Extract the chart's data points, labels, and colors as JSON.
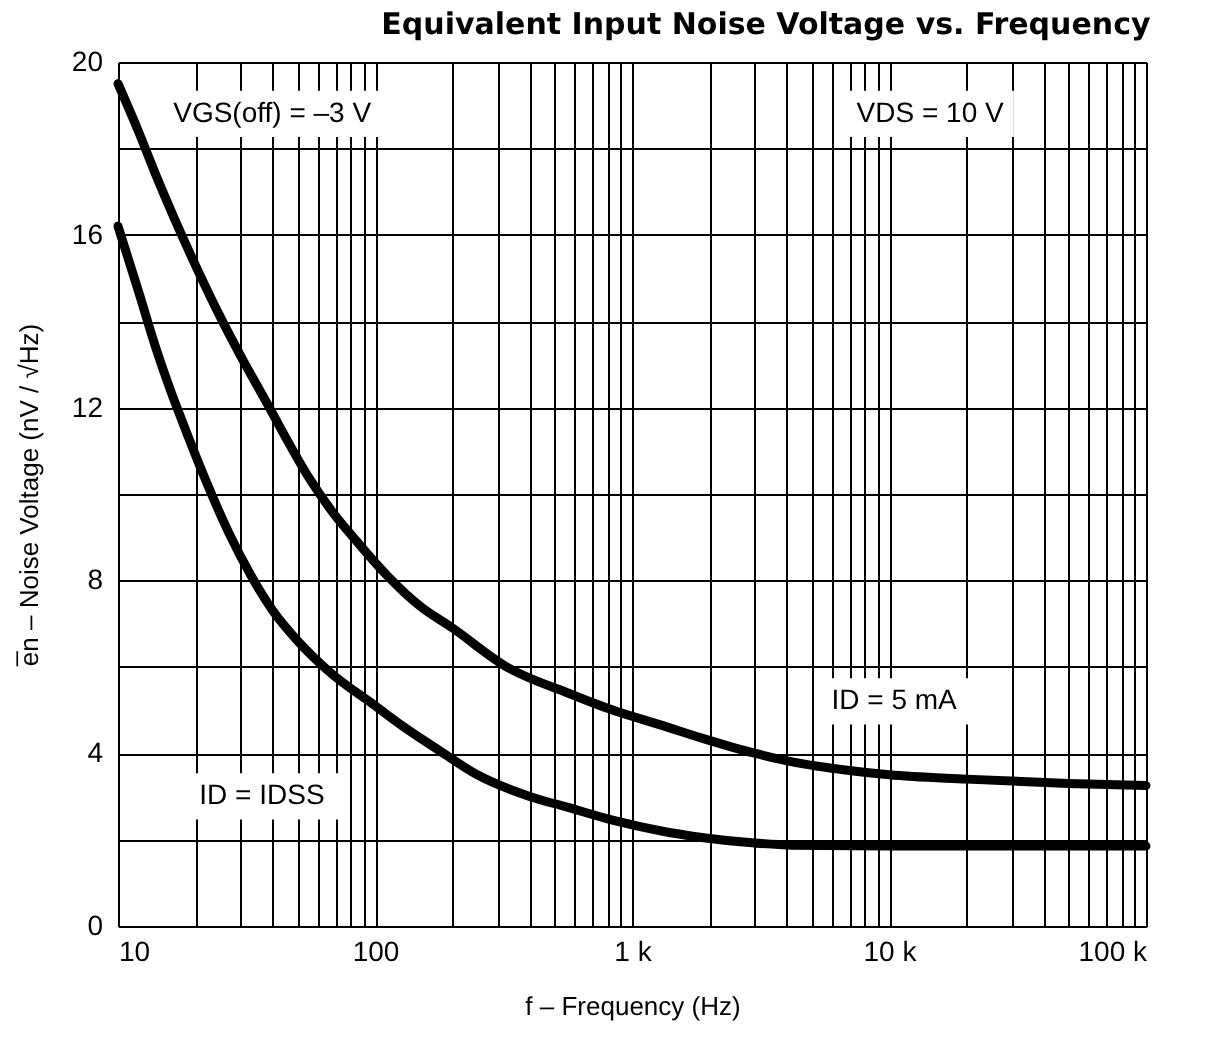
{
  "chart_data": {
    "type": "line",
    "title": "Equivalent Input Noise Voltage vs. Frequency",
    "xlabel": "f – Frequency (Hz)",
    "ylabel": "e̅n – Noise Voltage     (nV / √Hz)",
    "log": "x",
    "grid": true,
    "marker": "none",
    "line_style": "solid",
    "xlim": [
      10,
      100000
    ],
    "ylim": [
      0,
      20
    ],
    "xticks": [
      10,
      {
        "value": 20,
        "label": null
      },
      {
        "value": 30,
        "label": null
      },
      {
        "value": 40,
        "label": null
      },
      {
        "value": 50,
        "label": null
      },
      {
        "value": 60,
        "label": null
      },
      {
        "value": 70,
        "label": null
      },
      {
        "value": 80,
        "label": null
      },
      {
        "value": 90,
        "label": null
      },
      100,
      {
        "value": 200,
        "label": null
      },
      {
        "value": 300,
        "label": null
      },
      {
        "value": 400,
        "label": null
      },
      {
        "value": 500,
        "label": null
      },
      {
        "value": 600,
        "label": null
      },
      {
        "value": 700,
        "label": null
      },
      {
        "value": 800,
        "label": null
      },
      {
        "value": 900,
        "label": null
      },
      {
        "value": 1000,
        "label": "1 k"
      },
      {
        "value": 2000,
        "label": null
      },
      {
        "value": 3000,
        "label": null
      },
      {
        "value": 4000,
        "label": null
      },
      {
        "value": 5000,
        "label": null
      },
      {
        "value": 6000,
        "label": null
      },
      {
        "value": 7000,
        "label": null
      },
      {
        "value": 8000,
        "label": null
      },
      {
        "value": 9000,
        "label": null
      },
      {
        "value": 10000,
        "label": "10 k"
      },
      {
        "value": 20000,
        "label": null
      },
      {
        "value": 30000,
        "label": null
      },
      {
        "value": 40000,
        "label": null
      },
      {
        "value": 50000,
        "label": null
      },
      {
        "value": 60000,
        "label": null
      },
      {
        "value": 70000,
        "label": null
      },
      {
        "value": 80000,
        "label": null
      },
      {
        "value": 90000,
        "label": null
      },
      {
        "value": 100000,
        "label": "100 k"
      }
    ],
    "yticks": [
      0,
      {
        "value": 2,
        "label": null
      },
      4,
      {
        "value": 6,
        "label": null
      },
      8,
      {
        "value": 10,
        "label": null
      },
      12,
      {
        "value": 14,
        "label": null
      },
      16,
      {
        "value": 18,
        "label": null
      },
      20
    ],
    "series": [
      {
        "color": "#000000",
        "x": [
          10,
          12,
          14,
          16.5,
          20,
          25,
          30,
          38,
          45,
          55,
          70,
          85,
          112,
          150,
          200,
          325,
          560,
          840,
          1300,
          1870,
          3000,
          4200,
          7000,
          10000,
          20000,
          50000,
          100000
        ],
        "values": [
          19.5,
          18.4,
          17.4,
          16.4,
          15.3,
          14.1,
          13.2,
          12.1,
          11.3,
          10.4,
          9.5,
          8.9,
          8.1,
          7.4,
          6.9,
          6,
          5.4,
          5,
          4.65,
          4.35,
          4,
          3.8,
          3.6,
          3.5,
          3.4,
          3.3,
          3.25
        ]
      },
      {
        "color": "#000000",
        "x": [
          10,
          12,
          14,
          16,
          18,
          22,
          27,
          33,
          40,
          50,
          66,
          100,
          130,
          174,
          250,
          400,
          560,
          840,
          1300,
          1870,
          3000,
          4200,
          10000,
          100000
        ],
        "values": [
          16.2,
          14.7,
          13.4,
          12.4,
          11.6,
          10.3,
          9.1,
          8.1,
          7.3,
          6.6,
          5.9,
          5.1,
          4.6,
          4.1,
          3.5,
          3,
          2.75,
          2.45,
          2.2,
          2.05,
          1.92,
          1.87,
          1.85,
          1.85
        ]
      }
    ],
    "annotations": [
      "VGS(off) = –3 V",
      "VDS = 10 V",
      "ID = 5 mA",
      "ID = IDSS"
    ]
  }
}
